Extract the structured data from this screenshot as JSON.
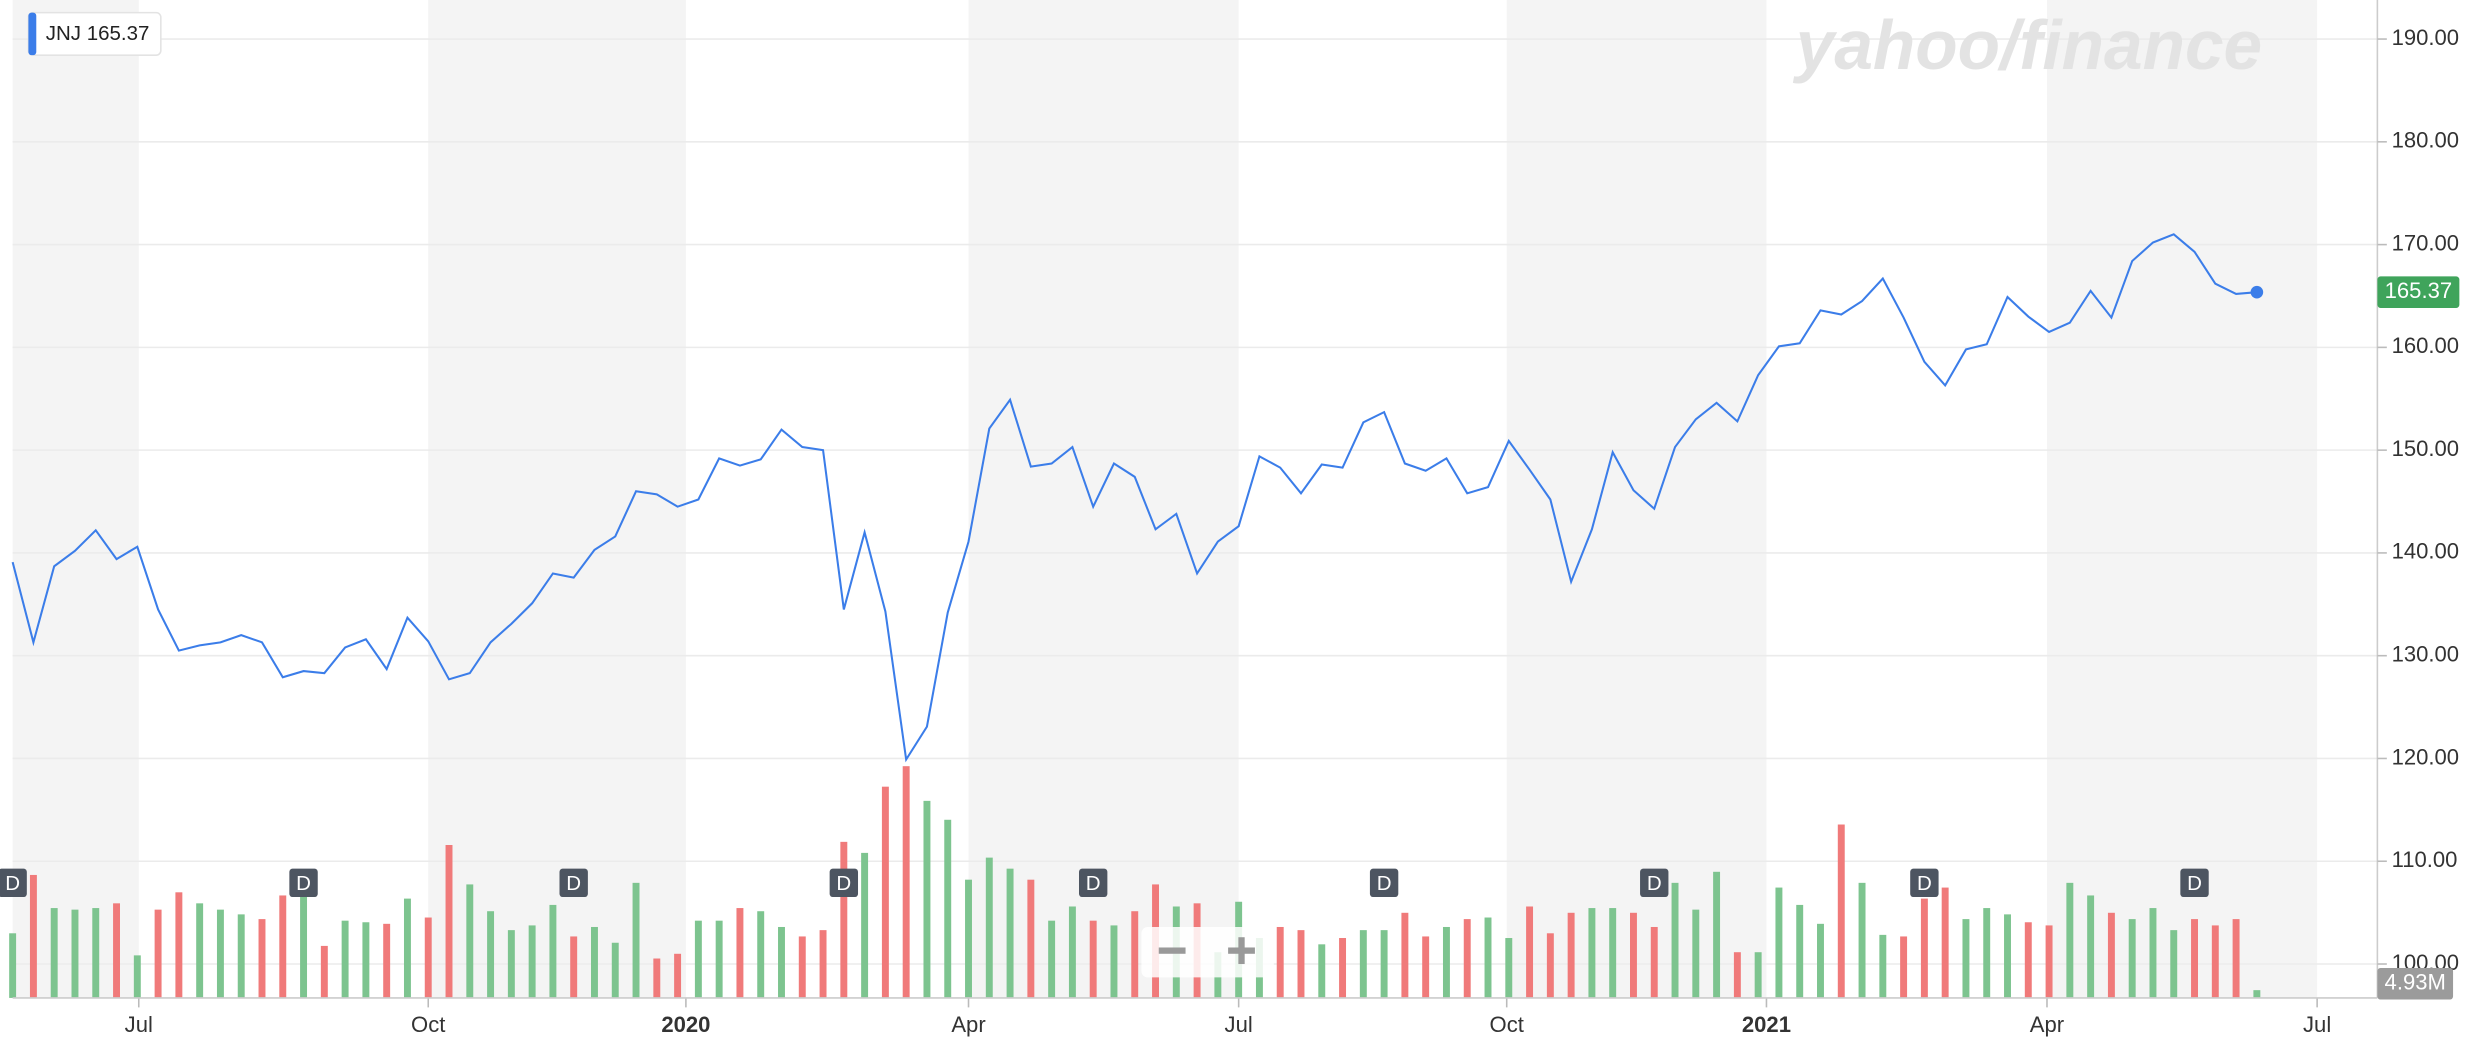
{
  "chart_data": {
    "type": "line",
    "watermark": "yahoo/finance",
    "series": [
      {
        "name": "JNJ",
        "color": "#3b7de9",
        "values": [
          139.1,
          131.3,
          138.7,
          140.2,
          142.2,
          139.4,
          140.6,
          134.5,
          130.5,
          131,
          131.3,
          132,
          131.3,
          127.9,
          128.5,
          128.3,
          130.8,
          131.6,
          128.7,
          133.7,
          131.4,
          127.7,
          128.3,
          131.3,
          133.1,
          135.1,
          138,
          137.6,
          140.3,
          141.6,
          146,
          145.7,
          144.5,
          145.2,
          149.2,
          148.5,
          149.1,
          152,
          150.3,
          150,
          134.5,
          142,
          134.3,
          119.9,
          123.1,
          134.2,
          141.1,
          152.1,
          154.9,
          148.4,
          148.7,
          150.3,
          144.5,
          148.7,
          147.4,
          142.3,
          143.8,
          138,
          141.1,
          142.6,
          149.4,
          148.3,
          145.8,
          148.6,
          148.3,
          152.7,
          153.7,
          148.7,
          148,
          149.2,
          145.8,
          146.4,
          150.9,
          148.1,
          145.2,
          137.2,
          142.3,
          149.8,
          146.1,
          144.3,
          150.3,
          153,
          154.6,
          152.8,
          157.3,
          160.1,
          160.4,
          163.6,
          163.2,
          164.5,
          166.7,
          162.9,
          158.6,
          156.3,
          159.8,
          160.3,
          164.9,
          163,
          161.5,
          162.4,
          165.5,
          162.9,
          168.4,
          170.2,
          171,
          169.3,
          166.2,
          165.2,
          165.37
        ]
      },
      {
        "name": "Volume",
        "axis": "y2",
        "up_color": "#7dc48f",
        "down_color": "#f07a7a",
        "values": [
          41,
          78,
          57,
          56,
          57,
          60,
          27,
          56,
          67,
          60,
          56,
          53,
          50,
          65,
          70,
          33,
          49,
          48,
          47,
          63,
          51,
          97,
          72,
          55,
          43,
          46,
          59,
          39,
          45,
          35,
          73,
          25,
          28,
          49,
          49,
          57,
          55,
          45,
          39,
          43,
          99,
          92,
          134,
          147,
          125,
          113,
          75,
          89,
          82,
          75,
          49,
          58,
          49,
          46,
          55,
          72,
          58,
          60,
          29,
          61,
          38,
          45,
          43,
          34,
          38,
          43,
          43,
          54,
          39,
          45,
          50,
          51,
          38,
          58,
          41,
          54,
          57,
          57,
          54,
          45,
          73,
          56,
          80,
          29,
          29,
          70,
          59,
          47,
          110,
          73,
          40,
          39,
          63,
          70,
          50,
          57,
          53,
          48,
          46,
          73,
          65,
          54,
          50,
          57,
          43,
          50,
          46,
          50,
          4.93
        ],
        "value_labels": [
          null,
          null,
          null,
          null,
          null,
          null,
          null,
          null,
          null,
          null,
          null,
          null,
          null,
          null,
          null,
          null,
          null,
          null,
          null,
          null,
          null,
          null,
          null,
          null,
          null,
          null,
          null,
          null,
          null,
          null,
          null,
          null,
          null,
          null,
          null,
          null,
          null,
          null,
          null,
          null,
          null,
          null,
          null,
          null,
          null,
          null,
          null,
          null,
          null,
          null,
          null,
          null,
          null,
          null,
          null,
          null,
          null,
          null,
          null,
          null,
          null,
          null,
          null,
          null,
          null,
          null,
          null,
          null,
          null,
          null,
          null,
          null,
          null,
          null,
          null,
          null,
          null,
          null,
          null,
          null,
          null,
          null,
          null,
          null,
          null,
          null,
          null,
          null,
          null,
          null,
          null,
          null,
          null,
          null,
          null,
          null,
          null,
          null,
          null,
          null,
          null,
          null,
          null,
          null,
          null,
          null,
          null,
          null,
          "4.93M"
        ]
      }
    ],
    "xlim": [
      0,
      113.8
    ],
    "xticks": [
      {
        "value": 6.07,
        "label": "Jul"
      },
      {
        "value": 20.0,
        "label": "Oct"
      },
      {
        "value": 32.4,
        "label": "2020"
      },
      {
        "value": 46.0,
        "label": "Apr"
      },
      {
        "value": 59.0,
        "label": "Jul"
      },
      {
        "value": 71.9,
        "label": "Oct"
      },
      {
        "value": 84.4,
        "label": "2021"
      },
      {
        "value": 97.9,
        "label": "Apr"
      },
      {
        "value": 110.9,
        "label": "Jul"
      }
    ],
    "ylim": [
      96.7,
      193.8
    ],
    "yticks": [
      {
        "value": 100,
        "label": "100.00"
      },
      {
        "value": 110,
        "label": "110.00"
      },
      {
        "value": 120,
        "label": "120.00"
      },
      {
        "value": 130,
        "label": "130.00"
      },
      {
        "value": 140,
        "label": "140.00"
      },
      {
        "value": 150,
        "label": "150.00"
      },
      {
        "value": 160,
        "label": "160.00"
      },
      {
        "value": 170,
        "label": "170.00"
      },
      {
        "value": 180,
        "label": "180.00"
      },
      {
        "value": 190,
        "label": "190.00"
      }
    ],
    "y2lim": [
      0,
      150
    ],
    "grid": true,
    "annotations": [
      {
        "label": "D",
        "x": 0
      },
      {
        "label": "D",
        "x": 14
      },
      {
        "label": "D",
        "x": 27
      },
      {
        "label": "D",
        "x": 40
      },
      {
        "label": "D",
        "x": 52
      },
      {
        "label": "D",
        "x": 66
      },
      {
        "label": "D",
        "x": 79
      },
      {
        "label": "D",
        "x": 92
      },
      {
        "label": "D",
        "x": 105
      }
    ]
  }
}
